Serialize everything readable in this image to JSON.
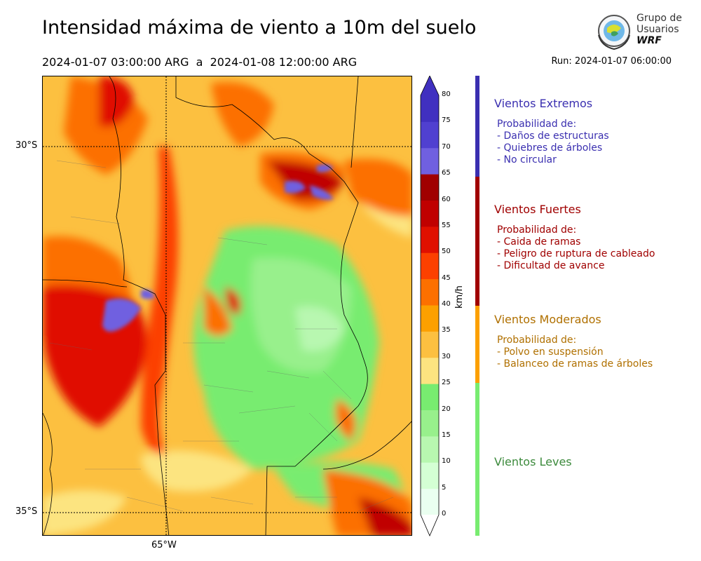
{
  "title": "Intensidad máxima de viento a 10m del suelo",
  "subtitle": "2024-01-07 03:00:00 ARG  a  2024-01-08 12:00:00 ARG",
  "run": "Run: 2024-01-07 06:00:00",
  "logo": {
    "line1": "Grupo de",
    "line2": "Usuarios",
    "line3": "WRF"
  },
  "map": {
    "lat_labels": [
      "30°S",
      "35°S"
    ],
    "lon_labels": [
      "65°W"
    ]
  },
  "colorbar": {
    "units": "km/h",
    "ticks": [
      "0",
      "5",
      "10",
      "15",
      "20",
      "25",
      "30",
      "35",
      "40",
      "45",
      "50",
      "55",
      "60",
      "65",
      "70",
      "75",
      "80"
    ],
    "colors": [
      "#eafff0",
      "#d4ffd4",
      "#b8f7b0",
      "#98f08c",
      "#78ec70",
      "#fce480",
      "#fcc040",
      "#fca000",
      "#fc7000",
      "#fc4000",
      "#e01000",
      "#c00000",
      "#a00000",
      "#7060e0",
      "#5040d0",
      "#4030c0"
    ]
  },
  "categories": [
    {
      "title": "Vientos Extremos",
      "color": "#3a2fb0",
      "lines": [
        "Probabilidad de:",
        "- Daños de estructuras",
        "- Quiebres de árboles",
        "- No circular"
      ]
    },
    {
      "title": "Vientos Fuertes",
      "color": "#a00000",
      "lines": [
        "Probabilidad de:",
        "- Caida de ramas",
        "- Peligro de ruptura de cableado",
        "- Dificultad de avance"
      ]
    },
    {
      "title": "Vientos Moderados",
      "color": "#b07000",
      "lines": [
        "Probabilidad de:",
        "- Polvo en suspensión",
        "- Balanceo de ramas de árboles"
      ]
    },
    {
      "title": "Vientos Leves",
      "color": "#3c8a3c",
      "lines": []
    }
  ],
  "category_bar_colors": [
    "#3a2fb0",
    "#a00000",
    "#fca000",
    "#78ec70"
  ]
}
